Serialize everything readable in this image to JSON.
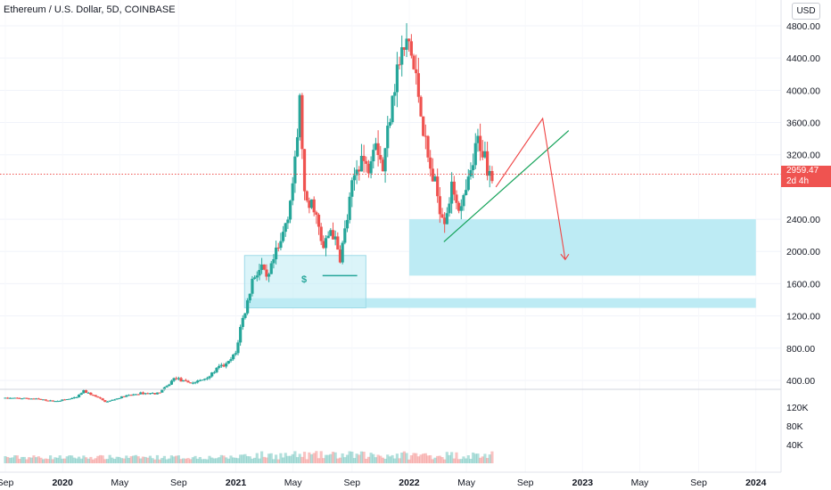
{
  "header": {
    "title": "Ethereum / U.S. Dollar, 5D, COINBASE",
    "currency_button": "USD"
  },
  "price_tag": {
    "price": "2959.47",
    "countdown": "2d 4h"
  },
  "annotation": {
    "dollar_label": "$"
  },
  "colors": {
    "up": "#26a69a",
    "down": "#ef5350",
    "zone": "#bdebf4",
    "trendline": "#16a35a",
    "projection": "#ef4444"
  },
  "chart_data": {
    "type": "candlestick",
    "title": "Ethereum / U.S. Dollar, 5D, COINBASE",
    "price_axis": {
      "ticks": [
        400,
        800,
        1200,
        1600,
        2000,
        2400,
        3200,
        3600,
        4000,
        4400,
        4800
      ],
      "tick_labels": [
        "400.00",
        "800.00",
        "1200.00",
        "1600.00",
        "2000.00",
        "2400.00",
        "3200.00",
        "3600.00",
        "4000.00",
        "4400.00",
        "4800.00"
      ]
    },
    "volume_axis": {
      "ticks": [
        40000,
        80000,
        120000
      ],
      "tick_labels": [
        "40K",
        "80K",
        "120K"
      ]
    },
    "time_axis": {
      "labels": [
        "Sep",
        "2020",
        "May",
        "Sep",
        "2021",
        "May",
        "Sep",
        "2022",
        "May",
        "Sep",
        "2023",
        "May",
        "Sep",
        "2024"
      ],
      "bold": [
        false,
        true,
        false,
        false,
        true,
        false,
        false,
        true,
        false,
        false,
        true,
        false,
        false,
        true
      ]
    },
    "last_price": 2959.47,
    "price_path": [
      [
        2019.67,
        180
      ],
      [
        2019.83,
        175
      ],
      [
        2019.95,
        140
      ],
      [
        2020.08,
        185
      ],
      [
        2020.12,
        270
      ],
      [
        2020.2,
        190
      ],
      [
        2020.25,
        130
      ],
      [
        2020.35,
        200
      ],
      [
        2020.45,
        240
      ],
      [
        2020.55,
        240
      ],
      [
        2020.6,
        320
      ],
      [
        2020.65,
        440
      ],
      [
        2020.7,
        380
      ],
      [
        2020.75,
        370
      ],
      [
        2020.8,
        400
      ],
      [
        2020.85,
        460
      ],
      [
        2020.9,
        560
      ],
      [
        2020.95,
        600
      ],
      [
        2021.0,
        740
      ],
      [
        2021.03,
        1100
      ],
      [
        2021.06,
        1300
      ],
      [
        2021.1,
        1700
      ],
      [
        2021.15,
        1800
      ],
      [
        2021.18,
        1600
      ],
      [
        2021.22,
        1900
      ],
      [
        2021.26,
        2100
      ],
      [
        2021.3,
        2500
      ],
      [
        2021.34,
        3000
      ],
      [
        2021.37,
        3900
      ],
      [
        2021.4,
        2500
      ],
      [
        2021.45,
        2600
      ],
      [
        2021.5,
        2000
      ],
      [
        2021.55,
        2300
      ],
      [
        2021.6,
        1900
      ],
      [
        2021.65,
        2500
      ],
      [
        2021.68,
        2900
      ],
      [
        2021.72,
        3200
      ],
      [
        2021.76,
        3000
      ],
      [
        2021.8,
        3500
      ],
      [
        2021.85,
        3000
      ],
      [
        2021.9,
        4000
      ],
      [
        2021.95,
        4400
      ],
      [
        2022.0,
        4600
      ],
      [
        2022.03,
        4200
      ],
      [
        2022.06,
        3900
      ],
      [
        2022.1,
        3200
      ],
      [
        2022.15,
        2800
      ],
      [
        2022.2,
        2400
      ],
      [
        2022.25,
        2800
      ],
      [
        2022.3,
        2500
      ],
      [
        2022.35,
        2900
      ],
      [
        2022.4,
        3400
      ],
      [
        2022.45,
        3100
      ],
      [
        2022.49,
        2960
      ]
    ],
    "zones": [
      {
        "from": 2022.0,
        "to": 2024.0,
        "low": 1700,
        "high": 2400,
        "label": ""
      },
      {
        "from": 2021.05,
        "to": 2024.0,
        "low": 1300,
        "high": 1420,
        "label": ""
      },
      {
        "from": 2021.05,
        "to": 2021.75,
        "low": 1300,
        "high": 1950,
        "label": ""
      }
    ],
    "support_level": {
      "from": 2021.5,
      "to": 2021.7,
      "price": 1700
    },
    "trendline": {
      "start": [
        2022.2,
        2120
      ],
      "end": [
        2022.92,
        3500
      ]
    },
    "projection": [
      [
        2022.5,
        2800
      ],
      [
        2022.77,
        3650
      ],
      [
        2022.9,
        1900
      ]
    ],
    "legend": "none"
  }
}
